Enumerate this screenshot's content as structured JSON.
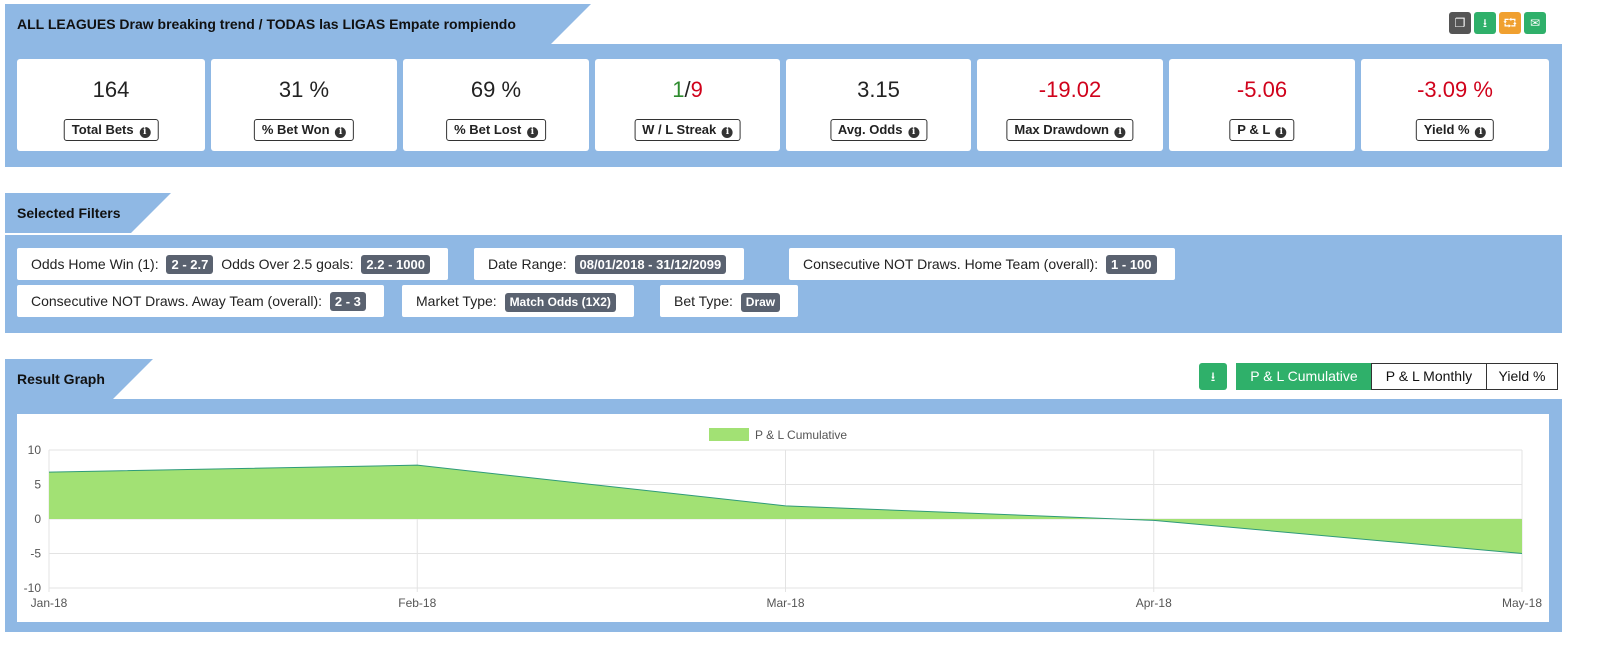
{
  "header": {
    "title": "ALL LEAGUES Draw breaking trend / TODAS las LIGAS Empate rompiendo racha"
  },
  "toolbar": {
    "buttons": [
      {
        "name": "copy-icon",
        "color": "#555555"
      },
      {
        "name": "download-icon",
        "color": "#2fb06a"
      },
      {
        "name": "share-icon",
        "color": "#f0a030"
      },
      {
        "name": "email-icon",
        "color": "#2fb06a"
      }
    ]
  },
  "stats": {
    "total_bets": {
      "value": "164",
      "label": "Total Bets"
    },
    "bet_won": {
      "value": "31 %",
      "label": "% Bet Won"
    },
    "bet_lost": {
      "value": "69 %",
      "label": "% Bet Lost"
    },
    "streak": {
      "wins": "1",
      "sep": "/",
      "losses": "9",
      "label": "W / L Streak"
    },
    "avg_odds": {
      "value": "3.15",
      "label": "Avg. Odds"
    },
    "max_drawdown": {
      "value": "-19.02",
      "label": "Max Drawdown"
    },
    "pl": {
      "value": "-5.06",
      "label": "P & L"
    },
    "yield": {
      "value": "-3.09 %",
      "label": "Yield %"
    }
  },
  "filters": {
    "title": "Selected Filters",
    "odds_home_win": {
      "label": "Odds Home Win (1):",
      "value": "2 - 2.7"
    },
    "odds_over": {
      "label": "Odds Over 2.5 goals:",
      "value": "2.2 - 1000"
    },
    "date_range": {
      "label": "Date Range:",
      "value": "08/01/2018 - 31/12/2099"
    },
    "consec_home": {
      "label": "Consecutive NOT Draws. Home Team (overall):",
      "value": "1 - 100"
    },
    "consec_away": {
      "label": "Consecutive NOT Draws. Away Team (overall):",
      "value": "2 - 3"
    },
    "market_type": {
      "label": "Market Type:",
      "value": "Match Odds (1X2)"
    },
    "bet_type": {
      "label": "Bet Type:",
      "value": "Draw"
    }
  },
  "graph": {
    "title": "Result Graph",
    "tabs": [
      {
        "label": "P & L Cumulative",
        "active": true
      },
      {
        "label": "P & L Monthly",
        "active": false
      },
      {
        "label": "Yield %",
        "active": false
      }
    ]
  },
  "chart_data": {
    "type": "area",
    "x": [
      "Jan-18",
      "Feb-18",
      "Mar-18",
      "Apr-18",
      "May-18"
    ],
    "series": [
      {
        "name": "P & L Cumulative",
        "values": [
          6.8,
          7.8,
          1.9,
          -0.2,
          -5.0
        ]
      }
    ],
    "ylim": [
      -10,
      10
    ],
    "yticks": [
      10,
      5,
      0,
      -5,
      -10
    ],
    "grid": true,
    "legend": "top-center",
    "fill_color": "#a2e174",
    "line_color": "#2e9a7a"
  }
}
